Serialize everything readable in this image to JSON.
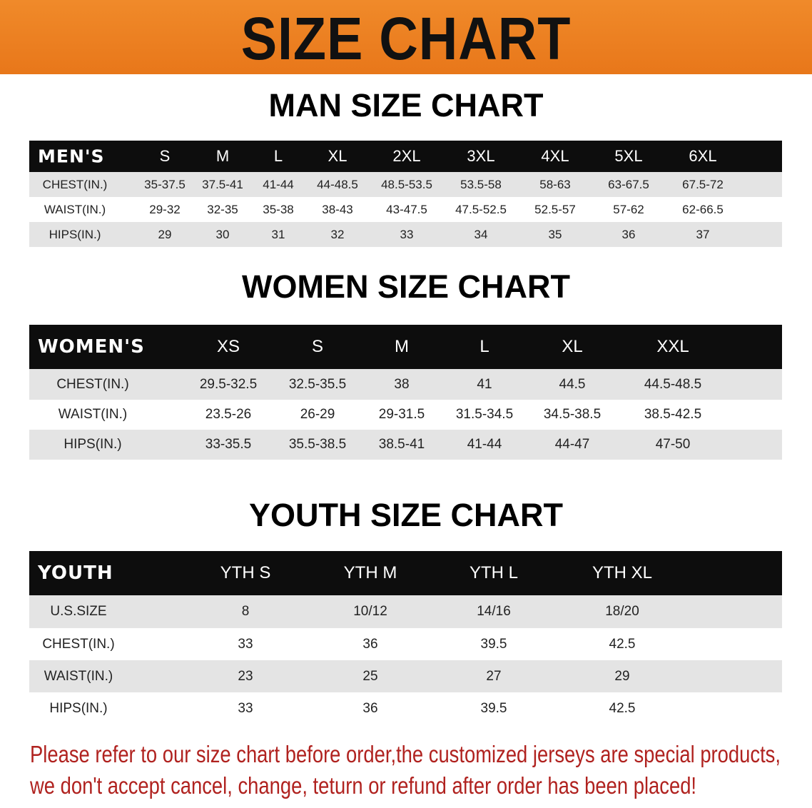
{
  "banner_title": "SIZE CHART",
  "colors": {
    "banner": "#e8771a",
    "header_bg": "#0d0d0d",
    "stripe": "#e4e4e4",
    "note": "#b0221f"
  },
  "chart_data": [
    {
      "type": "table",
      "title": "MAN SIZE CHART",
      "header": "MEN'S",
      "columns": [
        "S",
        "M",
        "L",
        "XL",
        "2XL",
        "3XL",
        "4XL",
        "5XL",
        "6XL"
      ],
      "rows": [
        {
          "label": "CHEST(IN.)",
          "values": [
            "35-37.5",
            "37.5-41",
            "41-44",
            "44-48.5",
            "48.5-53.5",
            "53.5-58",
            "58-63",
            "63-67.5",
            "67.5-72"
          ]
        },
        {
          "label": "WAIST(IN.)",
          "values": [
            "29-32",
            "32-35",
            "35-38",
            "38-43",
            "43-47.5",
            "47.5-52.5",
            "52.5-57",
            "57-62",
            "62-66.5"
          ]
        },
        {
          "label": "HIPS(IN.)",
          "values": [
            "29",
            "30",
            "31",
            "32",
            "33",
            "34",
            "35",
            "36",
            "37"
          ]
        }
      ]
    },
    {
      "type": "table",
      "title": "WOMEN SIZE CHART",
      "header": "WOMEN'S",
      "columns": [
        "XS",
        "S",
        "M",
        "L",
        "XL",
        "XXL"
      ],
      "rows": [
        {
          "label": "CHEST(IN.)",
          "values": [
            "29.5-32.5",
            "32.5-35.5",
            "38",
            "41",
            "44.5",
            "44.5-48.5"
          ]
        },
        {
          "label": "WAIST(IN.)",
          "values": [
            "23.5-26",
            "26-29",
            "29-31.5",
            "31.5-34.5",
            "34.5-38.5",
            "38.5-42.5"
          ]
        },
        {
          "label": "HIPS(IN.)",
          "values": [
            "33-35.5",
            "35.5-38.5",
            "38.5-41",
            "41-44",
            "44-47",
            "47-50"
          ]
        }
      ]
    },
    {
      "type": "table",
      "title": "YOUTH SIZE CHART",
      "header": "YOUTH",
      "columns": [
        "YTH S",
        "YTH M",
        "YTH L",
        "YTH XL"
      ],
      "rows": [
        {
          "label": "U.S.SIZE",
          "values": [
            "8",
            "10/12",
            "14/16",
            "18/20"
          ]
        },
        {
          "label": "CHEST(IN.)",
          "values": [
            "33",
            "36",
            "39.5",
            "42.5"
          ]
        },
        {
          "label": "WAIST(IN.)",
          "values": [
            "23",
            "25",
            "27",
            "29"
          ]
        },
        {
          "label": "HIPS(IN.)",
          "values": [
            "33",
            "36",
            "39.5",
            "42.5"
          ]
        }
      ]
    }
  ],
  "notice": [
    "Please refer to our size chart before order,the customized jerseys are special products,",
    "we don't accept cancel, change, teturn or refund after order has been placed!"
  ]
}
